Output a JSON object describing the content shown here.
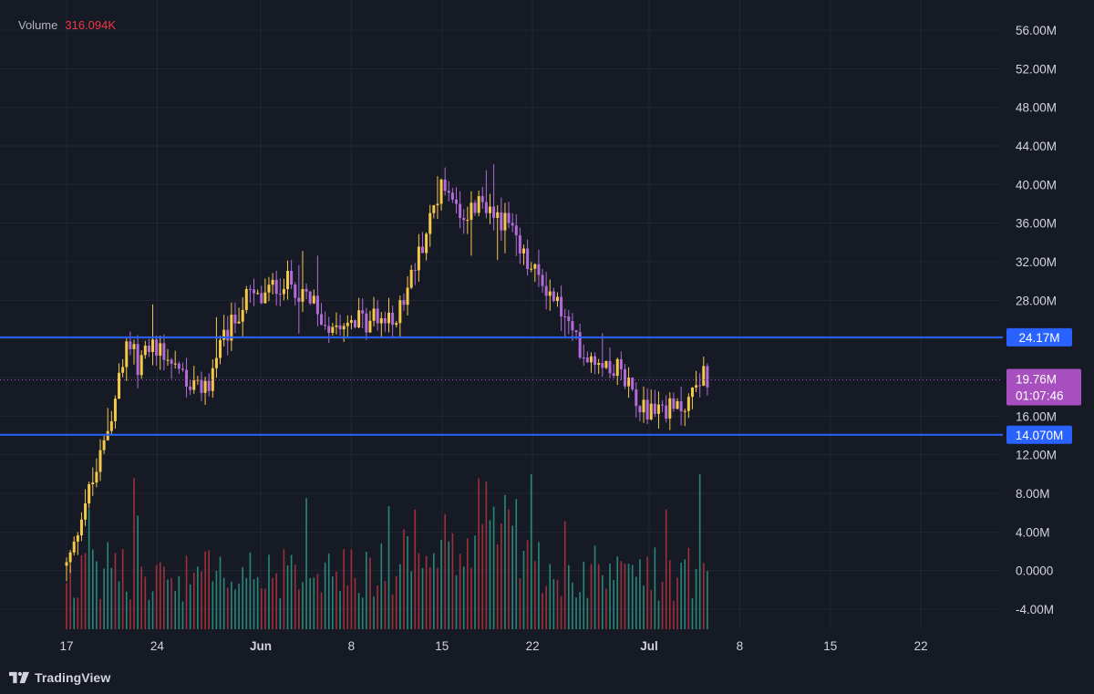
{
  "legend": {
    "label": "Volume",
    "value": "316.094K"
  },
  "brand": {
    "name": "TradingView"
  },
  "colors": {
    "background": "#161a25",
    "grid": "#232733",
    "candle_yellow": "#f5c84a",
    "candle_purple": "#b36bd8",
    "vol_green": "#2a8d7d",
    "vol_red": "#a8303b",
    "hline": "#2962ff",
    "last_price": "#a84fc0"
  },
  "chart_data": {
    "type": "candlestick",
    "y_axis": {
      "range": [
        -6000000,
        58000000
      ],
      "ticks": [
        {
          "value": 56000000,
          "label": "56.00M"
        },
        {
          "value": 52000000,
          "label": "52.00M"
        },
        {
          "value": 48000000,
          "label": "48.00M"
        },
        {
          "value": 44000000,
          "label": "44.00M"
        },
        {
          "value": 40000000,
          "label": "40.00M"
        },
        {
          "value": 36000000,
          "label": "36.00M"
        },
        {
          "value": 32000000,
          "label": "32.00M"
        },
        {
          "value": 28000000,
          "label": "28.00M"
        },
        {
          "value": 16000000,
          "label": "16.00M"
        },
        {
          "value": 12000000,
          "label": "12.00M"
        },
        {
          "value": 8000000,
          "label": "8.00M"
        },
        {
          "value": 4000000,
          "label": "4.00M"
        },
        {
          "value": 0,
          "label": "0.0000"
        },
        {
          "value": -4000000,
          "label": "-4.00M"
        }
      ]
    },
    "x_axis": {
      "range_days": [
        -1.5,
        63.5
      ],
      "ticks": [
        {
          "day": 0,
          "label": "17",
          "bold": false
        },
        {
          "day": 7,
          "label": "24",
          "bold": false
        },
        {
          "day": 15,
          "label": "Jun",
          "bold": true
        },
        {
          "day": 22,
          "label": "8",
          "bold": false
        },
        {
          "day": 29,
          "label": "15",
          "bold": false
        },
        {
          "day": 36,
          "label": "22",
          "bold": false
        },
        {
          "day": 45,
          "label": "Jul",
          "bold": true
        },
        {
          "day": 52,
          "label": "8",
          "bold": false
        },
        {
          "day": 59,
          "label": "15",
          "bold": false
        },
        {
          "day": 66,
          "label": "22",
          "bold": false
        }
      ]
    },
    "price_keypoints": [
      [
        0.0,
        0.5
      ],
      [
        0.6,
        2.5
      ],
      [
        1.2,
        6.5
      ],
      [
        2.0,
        9.0
      ],
      [
        2.8,
        12.5
      ],
      [
        3.5,
        16.5
      ],
      [
        4.2,
        20.5
      ],
      [
        5.0,
        24.5
      ],
      [
        5.5,
        21.0
      ],
      [
        6.0,
        22.5
      ],
      [
        7.0,
        23.5
      ],
      [
        8.0,
        22.0
      ],
      [
        9.0,
        20.5
      ],
      [
        10.0,
        18.5
      ],
      [
        11.0,
        19.5
      ],
      [
        12.0,
        23.5
      ],
      [
        13.0,
        26.0
      ],
      [
        14.0,
        28.5
      ],
      [
        15.0,
        28.0
      ],
      [
        16.0,
        29.5
      ],
      [
        17.0,
        30.0
      ],
      [
        18.0,
        29.0
      ],
      [
        19.0,
        27.5
      ],
      [
        20.0,
        25.5
      ],
      [
        21.0,
        26.0
      ],
      [
        22.0,
        26.5
      ],
      [
        23.0,
        25.5
      ],
      [
        24.0,
        26.5
      ],
      [
        25.0,
        25.5
      ],
      [
        26.0,
        28.0
      ],
      [
        27.0,
        32.0
      ],
      [
        28.0,
        36.0
      ],
      [
        28.8,
        39.5
      ],
      [
        29.5,
        40.0
      ],
      [
        30.2,
        37.5
      ],
      [
        31.0,
        37.0
      ],
      [
        32.0,
        38.0
      ],
      [
        33.0,
        37.0
      ],
      [
        34.0,
        36.0
      ],
      [
        35.0,
        33.0
      ],
      [
        36.0,
        31.0
      ],
      [
        37.0,
        29.5
      ],
      [
        38.0,
        27.5
      ],
      [
        39.0,
        24.5
      ],
      [
        40.0,
        22.5
      ],
      [
        41.0,
        22.0
      ],
      [
        42.0,
        21.5
      ],
      [
        43.0,
        20.5
      ],
      [
        44.0,
        18.0
      ],
      [
        45.0,
        16.5
      ],
      [
        46.0,
        17.0
      ],
      [
        47.0,
        16.5
      ],
      [
        48.0,
        17.5
      ],
      [
        49.0,
        20.5
      ],
      [
        49.5,
        19.76
      ]
    ],
    "volume_range": [
      -5500000,
      10000000
    ],
    "volume_bar_count": 172,
    "horizontal_lines": [
      {
        "value": 24170000,
        "label": "24.17M"
      },
      {
        "value": 14070000,
        "label": "14.070M"
      }
    ],
    "last_price": {
      "value": 19760000,
      "label": "19.76M",
      "countdown": "01:07:46"
    }
  }
}
